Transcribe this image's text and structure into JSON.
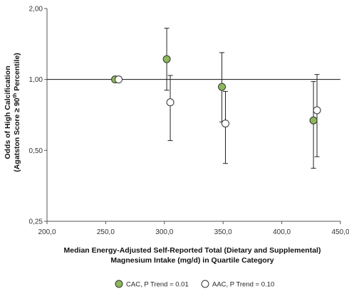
{
  "chart_data": {
    "type": "scatter",
    "title": "",
    "xlabel_line1": "Median Energy-Adjusted Self-Reported Total (Dietary and Supplemental)",
    "xlabel_line2": "Magnesium Intake (mg/d) in Quartile Category",
    "ylabel_line1": "Odds of High Calcification",
    "ylabel_line2_main": "(Agatston Score ≥ 90",
    "ylabel_line2_sup": "th",
    "ylabel_line2_end": " Percentile)",
    "xlim": [
      200,
      450
    ],
    "ylim": [
      0.25,
      2.0
    ],
    "y_scale": "log",
    "x_ticks": [
      {
        "value": 200,
        "label": "200,0"
      },
      {
        "value": 250,
        "label": "250,0"
      },
      {
        "value": 300,
        "label": "300,0"
      },
      {
        "value": 350,
        "label": "350,0"
      },
      {
        "value": 400,
        "label": "400,0"
      },
      {
        "value": 450,
        "label": "450,0"
      }
    ],
    "y_ticks": [
      {
        "value": 0.25,
        "label": "0,25"
      },
      {
        "value": 0.5,
        "label": "0,50"
      },
      {
        "value": 1.0,
        "label": "1,00"
      },
      {
        "value": 2.0,
        "label": "2,00"
      }
    ],
    "reference_line": 1.0,
    "grid": false,
    "legend_position": "bottom",
    "series": [
      {
        "name": "CAC, P Trend = 0.01",
        "color": "#8db85a",
        "fill": true,
        "points": [
          {
            "x": 258,
            "y": 1.0,
            "lo": null,
            "hi": null
          },
          {
            "x": 302,
            "y": 1.22,
            "lo": 0.9,
            "hi": 1.65
          },
          {
            "x": 349,
            "y": 0.93,
            "lo": 0.66,
            "hi": 1.3
          },
          {
            "x": 427,
            "y": 0.67,
            "lo": 0.42,
            "hi": 0.98
          }
        ]
      },
      {
        "name": "AAC, P Trend = 0.10",
        "color": "#ffffff",
        "fill": false,
        "points": [
          {
            "x": 261,
            "y": 1.0,
            "lo": null,
            "hi": null
          },
          {
            "x": 305,
            "y": 0.8,
            "lo": 0.55,
            "hi": 1.04
          },
          {
            "x": 352,
            "y": 0.65,
            "lo": 0.44,
            "hi": 0.89
          },
          {
            "x": 430,
            "y": 0.74,
            "lo": 0.47,
            "hi": 1.05
          }
        ]
      }
    ]
  }
}
